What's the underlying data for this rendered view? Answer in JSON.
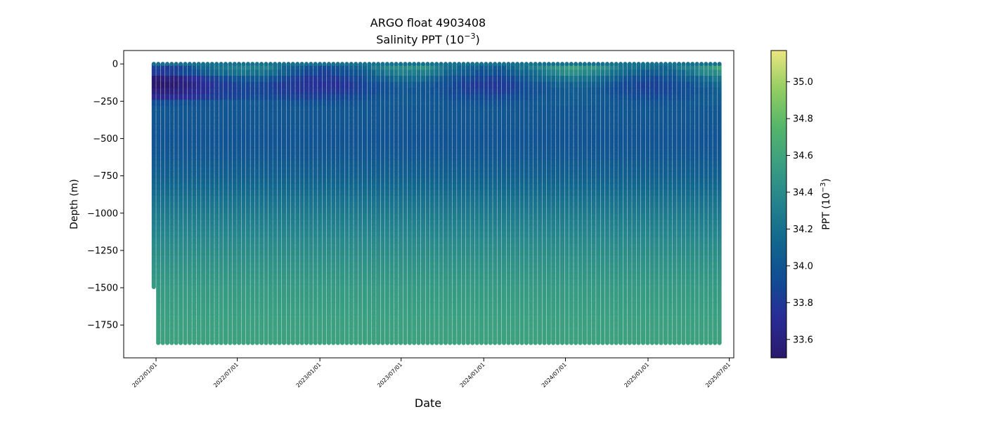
{
  "chart_data": {
    "type": "scatter",
    "title": "ARGO float 4903408",
    "subtitle": "Salinity PPT (10−3)",
    "subtitle_parts": {
      "base": "Salinity PPT (10",
      "sup": "−3",
      "tail": ")"
    },
    "xlabel": "Date",
    "ylabel": "Depth (m)",
    "x_ticks": [
      "2022/01/01",
      "2022/07/01",
      "2023/01/01",
      "2023/07/01",
      "2024/01/01",
      "2024/07/01",
      "2025/01/01",
      "2025/07/01"
    ],
    "x_range": [
      "2021/10/21",
      "2025/07/11"
    ],
    "y_ticks": [
      0,
      -250,
      -500,
      -750,
      -1000,
      -1250,
      -1500,
      -1750
    ],
    "y_tick_labels": [
      "0",
      "−250",
      "−500",
      "−750",
      "−1000",
      "−1250",
      "−1500",
      "−1750"
    ],
    "ylim": [
      -1970,
      90
    ],
    "grid": false,
    "colorbar": {
      "label": "PPT (10−3)",
      "label_parts": {
        "base": "PPT (10",
        "sup": "−3",
        "tail": ")"
      },
      "colormap": "haline",
      "range": [
        33.5,
        35.17
      ],
      "ticks": [
        33.6,
        33.8,
        34.0,
        34.2,
        34.4,
        34.6,
        34.8,
        35.0
      ],
      "tick_labels": [
        "33.6",
        "33.8",
        "34.0",
        "34.2",
        "34.4",
        "34.6",
        "34.8",
        "35.0"
      ]
    },
    "profiles": {
      "first_date": "2021/12/27",
      "last_date": "2025/06/02",
      "interval_days": 10,
      "count": 127,
      "first_max_depth": -1495,
      "first_shallow_segment_bottom": -945,
      "typical_max_depth": -1870
    },
    "salinity_by_depth": {
      "depth": [
        0,
        -50,
        -100,
        -150,
        -200,
        -250,
        -300,
        -400,
        -500,
        -600,
        -750,
        -900,
        -1000,
        -1250,
        -1500,
        -1750,
        -1870
      ],
      "psu": [
        34.2,
        34.1,
        33.95,
        33.85,
        33.9,
        33.98,
        34.0,
        34.0,
        33.98,
        34.0,
        34.08,
        34.2,
        34.28,
        34.42,
        34.52,
        34.57,
        34.58
      ]
    }
  }
}
